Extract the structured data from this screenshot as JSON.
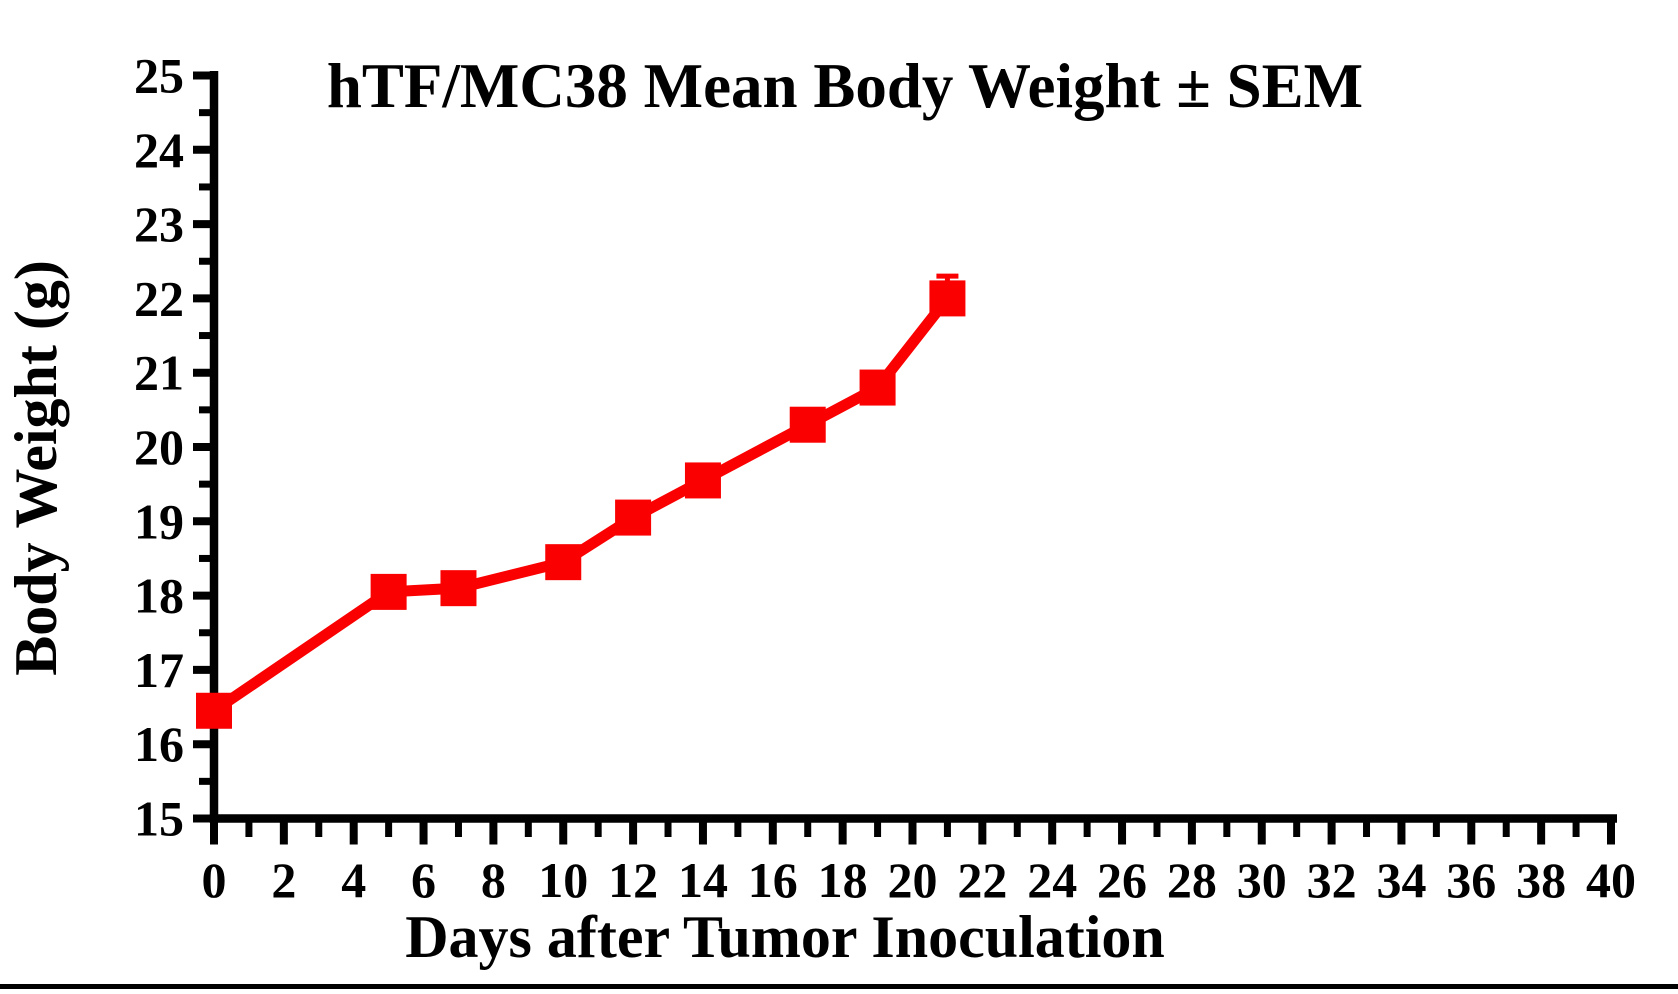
{
  "page": {
    "background_color": "#ffffff",
    "axis_color": "#000000"
  },
  "chart_data": {
    "type": "line",
    "title": "hTF/MC38 Mean Body Weight ± SEM",
    "xlabel": "Days after Tumor Inoculation",
    "ylabel": "Body Weight (g)",
    "xlim": [
      0,
      40
    ],
    "ylim": [
      15,
      25
    ],
    "x_major_tick_step": 2,
    "x_minor_tick_step": 1,
    "y_major_tick_step": 1,
    "y_minor_tick_step": 0.5,
    "x_tick_labels": [
      "0",
      "2",
      "4",
      "6",
      "8",
      "10",
      "12",
      "14",
      "16",
      "18",
      "20",
      "22",
      "24",
      "26",
      "28",
      "30",
      "32",
      "34",
      "36",
      "38",
      "40"
    ],
    "y_tick_labels": [
      "15",
      "16",
      "17",
      "18",
      "19",
      "20",
      "21",
      "22",
      "23",
      "24",
      "25"
    ],
    "grid": false,
    "legend_position": "none",
    "series": [
      {
        "name": "hTF/MC38",
        "color": "#fa0000",
        "marker": "filled-square",
        "x": [
          0,
          5,
          7,
          10,
          12,
          14,
          17,
          19,
          21
        ],
        "y": [
          16.45,
          18.05,
          18.1,
          18.45,
          19.05,
          19.55,
          20.3,
          20.8,
          22.0
        ],
        "sem_upper": [
          0,
          0,
          0,
          0,
          0,
          0,
          0,
          0,
          0.3
        ]
      }
    ]
  }
}
